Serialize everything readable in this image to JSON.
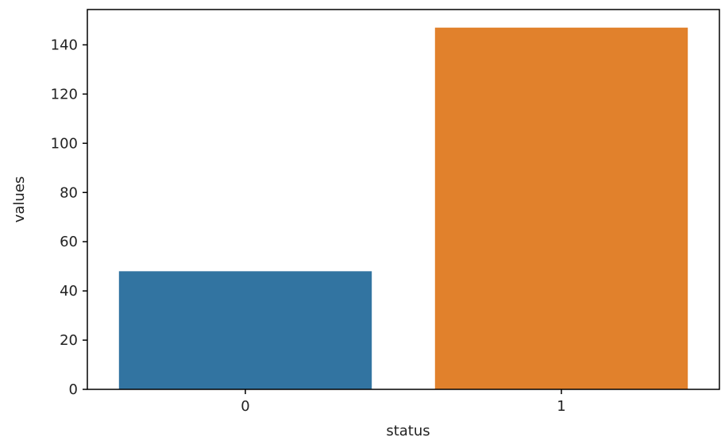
{
  "chart_data": {
    "type": "bar",
    "categories": [
      "0",
      "1"
    ],
    "values": [
      48,
      147
    ],
    "colors": [
      "#3274a1",
      "#e1812c"
    ],
    "title": "",
    "xlabel": "status",
    "ylabel": "values",
    "ylim": [
      0,
      154.35
    ],
    "yticks": [
      0,
      20,
      40,
      60,
      80,
      100,
      120,
      140
    ],
    "grid": false,
    "legend": "none"
  }
}
